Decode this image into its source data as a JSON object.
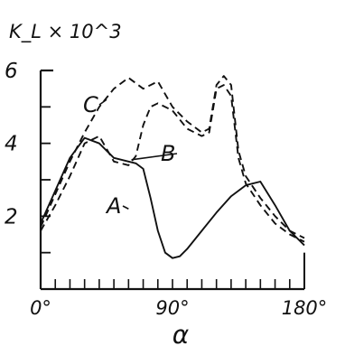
{
  "chart_data": {
    "type": "line",
    "title": "",
    "ylabel": "K_L × 10^3",
    "xlabel": "α",
    "xlim": [
      0,
      180
    ],
    "ylim": [
      0,
      6
    ],
    "grid": false,
    "legend": "inline labels with leader lines",
    "x_ticks": [
      {
        "value": 0,
        "label": "0°"
      },
      {
        "value": 90,
        "label": "90°"
      },
      {
        "value": 180,
        "label": "180°"
      }
    ],
    "y_ticks": [
      {
        "value": 2,
        "label": "2"
      },
      {
        "value": 4,
        "label": "4"
      },
      {
        "value": 6,
        "label": "6"
      }
    ],
    "series": [
      {
        "name": "A",
        "style": "solid",
        "x": [
          0,
          10,
          20,
          30,
          40,
          50,
          60,
          65,
          70,
          75,
          80,
          85,
          90,
          95,
          100,
          110,
          120,
          130,
          140,
          150,
          160,
          170,
          180
        ],
        "y": [
          1.8,
          2.7,
          3.6,
          4.15,
          4.0,
          3.6,
          3.5,
          3.45,
          3.3,
          2.5,
          1.6,
          1.0,
          0.85,
          0.9,
          1.1,
          1.6,
          2.1,
          2.55,
          2.85,
          2.95,
          2.3,
          1.6,
          1.2
        ]
      },
      {
        "name": "B",
        "style": "dashed",
        "x": [
          0,
          10,
          20,
          30,
          40,
          50,
          60,
          65,
          70,
          75,
          80,
          90,
          100,
          110,
          115,
          120,
          125,
          130,
          135,
          140,
          150,
          160,
          170,
          180
        ],
        "y": [
          1.6,
          2.3,
          3.1,
          4.0,
          4.2,
          3.5,
          3.4,
          3.65,
          4.5,
          5.0,
          5.1,
          4.9,
          4.4,
          4.2,
          4.3,
          5.5,
          5.6,
          5.3,
          3.6,
          2.9,
          2.3,
          1.8,
          1.5,
          1.3
        ]
      },
      {
        "name": "C",
        "style": "dashed",
        "x": [
          0,
          10,
          20,
          30,
          40,
          50,
          60,
          70,
          80,
          90,
          100,
          110,
          115,
          120,
          125,
          130,
          135,
          140,
          150,
          160,
          170,
          180
        ],
        "y": [
          1.7,
          2.6,
          3.5,
          4.3,
          5.0,
          5.5,
          5.8,
          5.5,
          5.7,
          5.0,
          4.6,
          4.3,
          4.4,
          5.6,
          5.85,
          5.6,
          3.8,
          3.1,
          2.5,
          2.0,
          1.6,
          1.4
        ]
      }
    ],
    "series_labels": [
      "A",
      "B",
      "C"
    ]
  }
}
